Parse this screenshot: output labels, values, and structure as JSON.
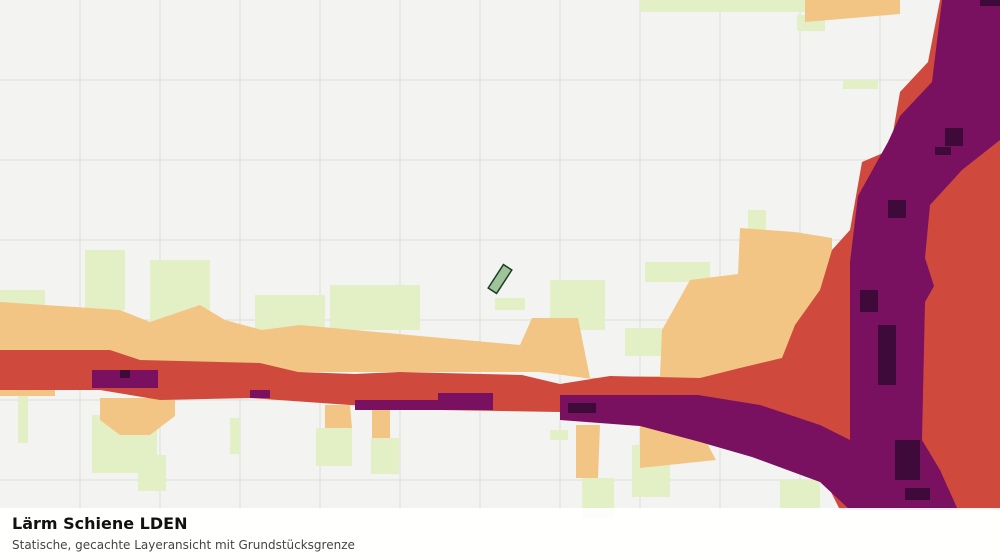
{
  "legend": {
    "title": "Lärm Schiene LDEN",
    "subtitle": "Statische, gecachte Layeransicht mit Grundstücksgrenze"
  }
}
